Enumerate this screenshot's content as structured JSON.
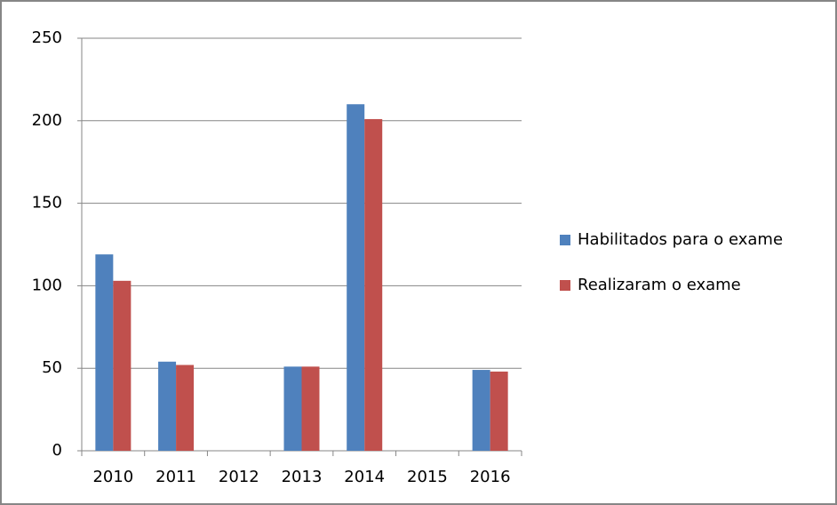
{
  "chart_data": {
    "type": "bar",
    "categories": [
      "2010",
      "2011",
      "2012",
      "2013",
      "2014",
      "2015",
      "2016"
    ],
    "series": [
      {
        "name": "Habilitados para o exame",
        "color": "#4f81bd",
        "values": [
          119,
          54,
          null,
          51,
          210,
          null,
          49
        ]
      },
      {
        "name": "Realizaram o exame",
        "color": "#c0504d",
        "values": [
          103,
          52,
          null,
          51,
          201,
          null,
          48
        ]
      }
    ],
    "ylim": [
      0,
      250
    ],
    "yticks": [
      0,
      50,
      100,
      150,
      200,
      250
    ],
    "grid": true,
    "legend": "right"
  }
}
